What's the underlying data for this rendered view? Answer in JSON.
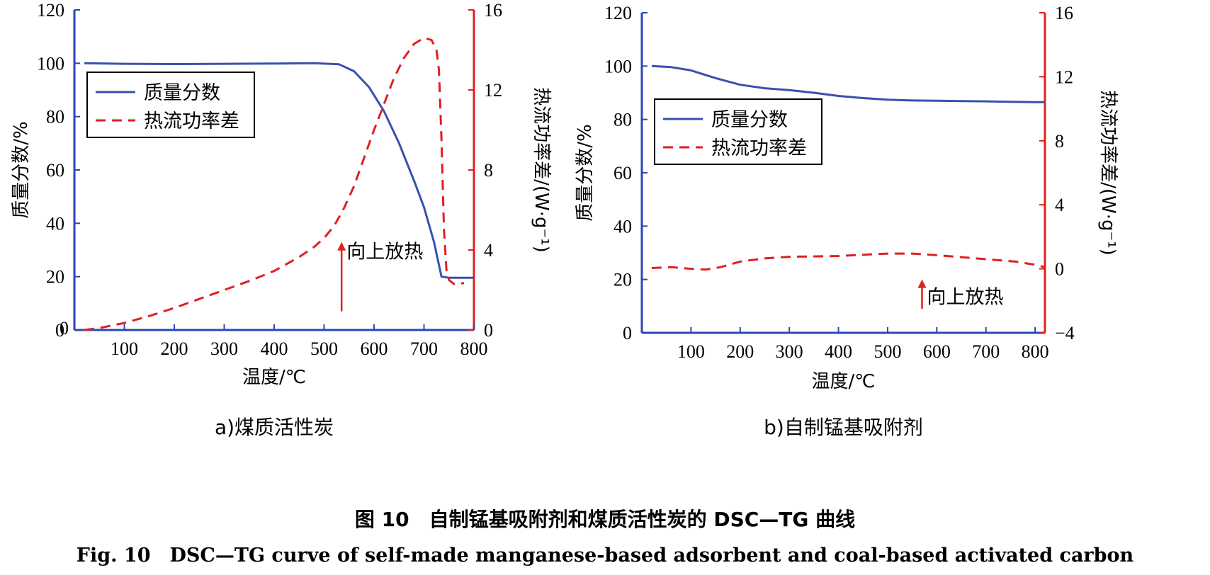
{
  "figure_caption_cn": "图 10　自制锰基吸附剂和煤质活性炭的 DSC—TG 曲线",
  "figure_caption_en": "Fig. 10　DSC—TG curve of self-made manganese-based adsorbent and coal-based activated carbon",
  "colors": {
    "mass": "#3a50b0",
    "heat": "#e02020",
    "left_axis": "#2f45b5",
    "right_axis": "#e02020"
  },
  "chart_data": [
    {
      "type": "line",
      "subcaption": "a)煤质活性炭",
      "xlabel": "温度/℃",
      "ylabel_left": "质量分数/%",
      "ylabel_right": "热流功率差/(W·g⁻¹)",
      "xlim": [
        0,
        800
      ],
      "ylim_left": [
        0,
        120
      ],
      "ylim_right": [
        0,
        16
      ],
      "x_ticks": [
        100,
        200,
        300,
        400,
        500,
        600,
        700,
        800
      ],
      "x_origin_label": "0",
      "y_left_ticks": [
        0,
        20,
        40,
        60,
        80,
        100,
        120
      ],
      "y_right_ticks": [
        0,
        4,
        8,
        12,
        16
      ],
      "legend": {
        "placement": "top-left",
        "entries": [
          "质量分数",
          "热流功率差"
        ]
      },
      "annotation": {
        "text": "向上放热",
        "arrow_x": 535,
        "arrow_y_from": 7,
        "arrow_y_to": 33,
        "text_x": 545,
        "text_y": 27
      },
      "series": [
        {
          "name": "质量分数",
          "axis": "left",
          "style": "solid",
          "x": [
            20,
            100,
            200,
            300,
            400,
            480,
            530,
            560,
            590,
            620,
            650,
            680,
            700,
            720,
            735,
            750,
            800
          ],
          "y": [
            100,
            99.8,
            99.7,
            99.8,
            99.9,
            100,
            99.6,
            97,
            91,
            82,
            70,
            56,
            46,
            33,
            20,
            19.6,
            19.6
          ]
        },
        {
          "name": "热流功率差",
          "axis": "right",
          "style": "dashed",
          "x": [
            20,
            50,
            100,
            150,
            200,
            250,
            300,
            350,
            400,
            450,
            480,
            500,
            520,
            540,
            560,
            580,
            600,
            620,
            640,
            660,
            680,
            700,
            715,
            725,
            730,
            735,
            740,
            745,
            750,
            760,
            770,
            780
          ],
          "y": [
            0,
            0.1,
            0.35,
            0.7,
            1.1,
            1.55,
            2.0,
            2.45,
            2.95,
            3.65,
            4.15,
            4.6,
            5.2,
            6.1,
            7.2,
            8.6,
            10.0,
            11.3,
            12.6,
            13.6,
            14.3,
            14.6,
            14.5,
            14.0,
            13.0,
            9.5,
            5.0,
            3.0,
            2.5,
            2.3,
            2.3,
            2.35
          ]
        }
      ]
    },
    {
      "type": "line",
      "subcaption": "b)自制锰基吸附剂",
      "xlabel": "温度/℃",
      "ylabel_left": "质量分数/%",
      "ylabel_right": "热流功率差/(W·g⁻¹)",
      "xlim": [
        0,
        820
      ],
      "ylim_left": [
        0,
        120
      ],
      "ylim_right": [
        -4,
        16
      ],
      "x_ticks": [
        100,
        200,
        300,
        400,
        500,
        600,
        700,
        800
      ],
      "x_origin_label": "",
      "y_left_ticks": [
        0,
        20,
        40,
        60,
        80,
        100,
        120
      ],
      "y_right_ticks": [
        -4,
        0,
        4,
        8,
        12,
        16
      ],
      "legend": {
        "placement": "middle-left",
        "entries": [
          "质量分数",
          "热流功率差"
        ]
      },
      "annotation": {
        "text": "向上放热",
        "arrow_x": 570,
        "arrow_y_from": 9,
        "arrow_y_to": 20,
        "text_x": 580,
        "text_y": 11
      },
      "series": [
        {
          "name": "质量分数",
          "axis": "left",
          "style": "solid",
          "x": [
            20,
            60,
            100,
            150,
            200,
            250,
            300,
            350,
            400,
            450,
            500,
            550,
            600,
            650,
            700,
            750,
            800,
            820
          ],
          "y": [
            100,
            99.6,
            98.4,
            95.5,
            93,
            91.7,
            91,
            90,
            88.8,
            88,
            87.4,
            87.1,
            87,
            86.9,
            86.8,
            86.6,
            86.5,
            86.5
          ]
        },
        {
          "name": "热流功率差",
          "axis": "right",
          "style": "dashed",
          "x": [
            20,
            60,
            100,
            130,
            160,
            200,
            250,
            300,
            400,
            500,
            550,
            600,
            700,
            760,
            800,
            820
          ],
          "y": [
            0.05,
            0.1,
            0,
            -0.05,
            0.1,
            0.45,
            0.65,
            0.75,
            0.8,
            0.95,
            0.95,
            0.85,
            0.6,
            0.45,
            0.25,
            0.1
          ]
        }
      ]
    }
  ]
}
